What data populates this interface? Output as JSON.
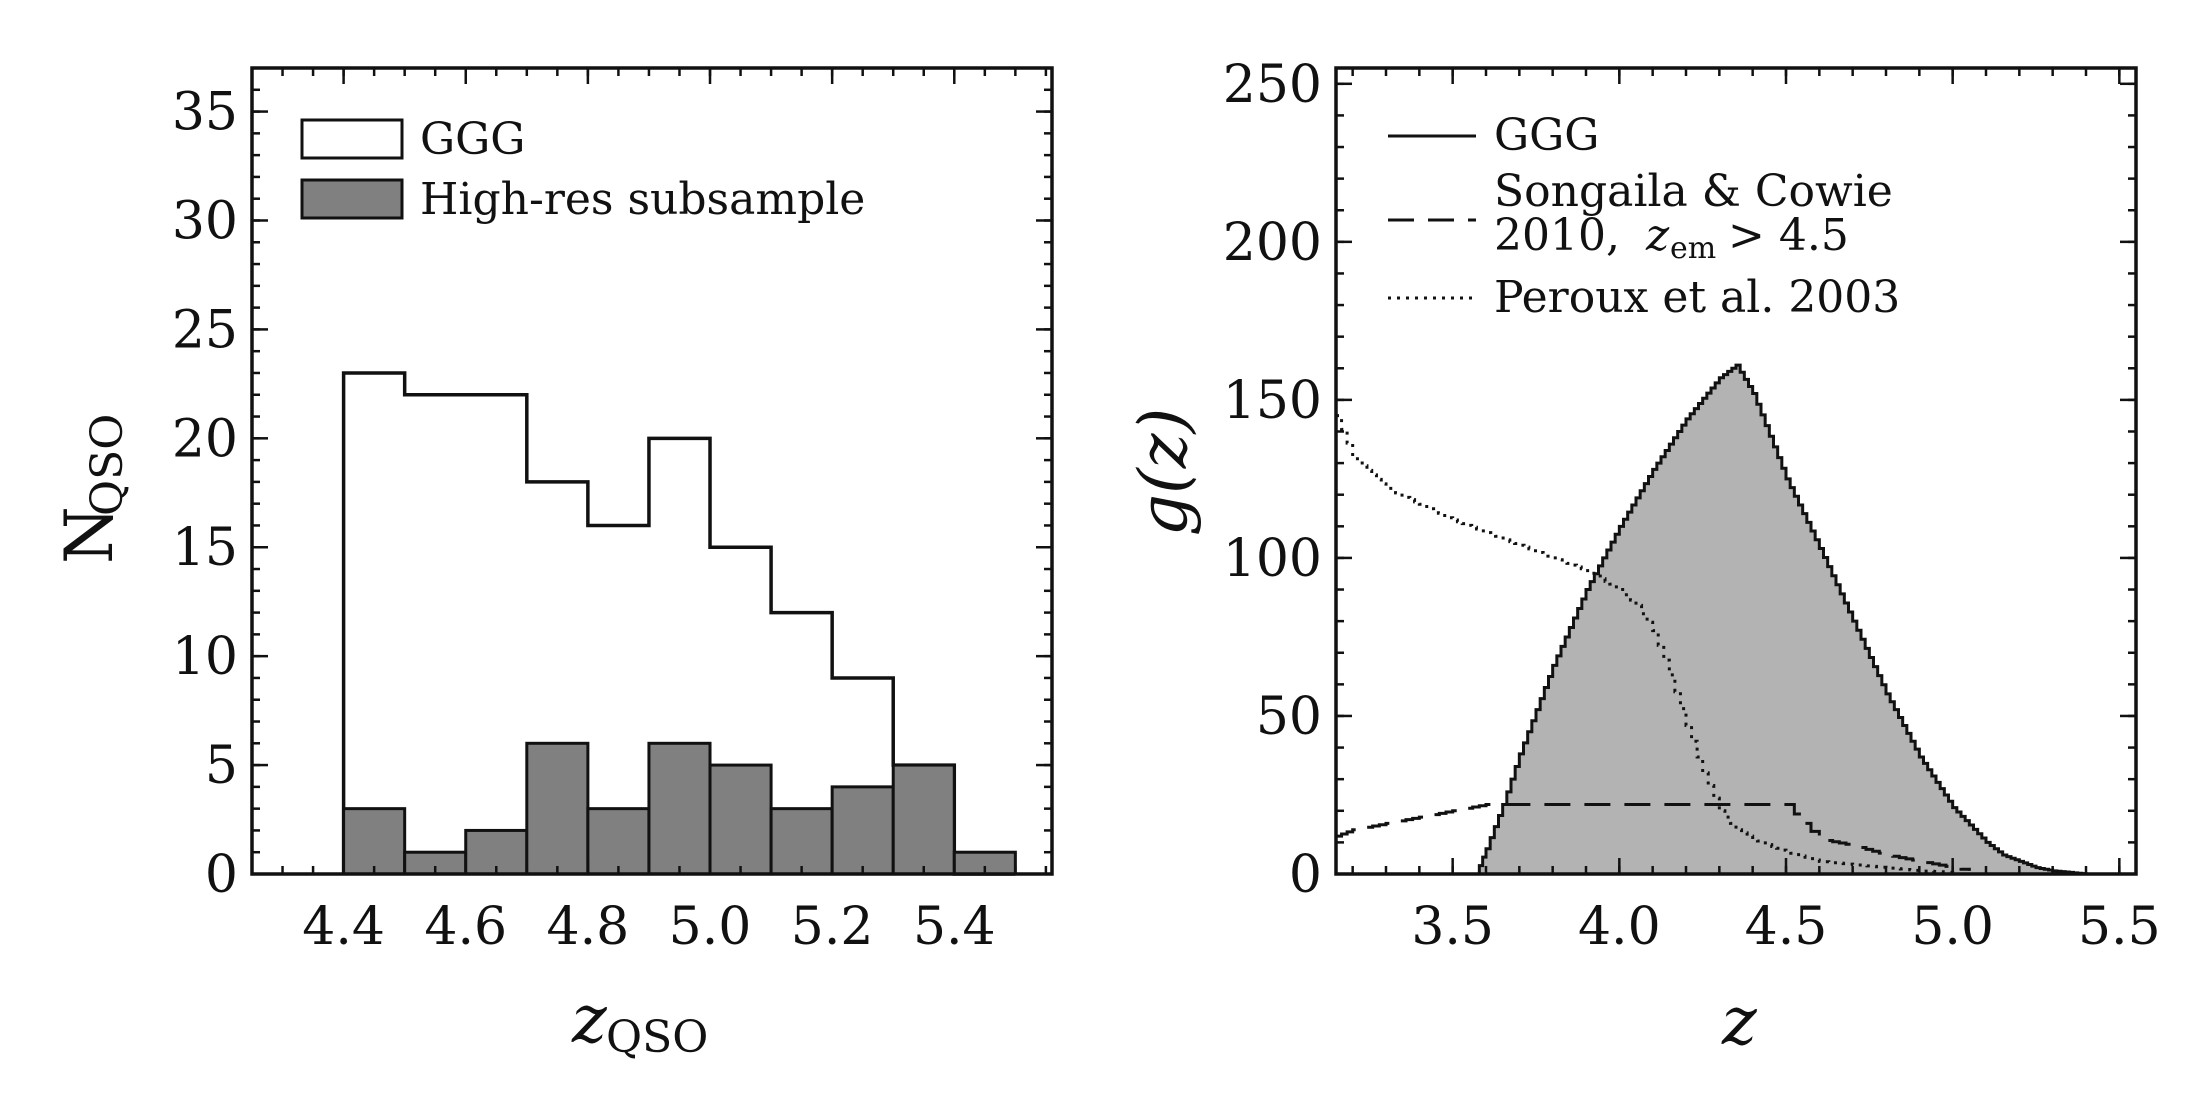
{
  "chart_data": [
    {
      "type": "histogram",
      "xlabel": "z",
      "xlabel_sub": "QSO",
      "ylabel": "N",
      "ylabel_sub": "QSO",
      "xlim": [
        4.25,
        5.56
      ],
      "ylim": [
        0,
        37
      ],
      "xticks": [
        "4.4",
        "4.6",
        "4.8",
        "5.0",
        "5.2",
        "5.4"
      ],
      "yticks": [
        "0",
        "5",
        "10",
        "15",
        "20",
        "25",
        "30",
        "35"
      ],
      "bin_edges": [
        4.4,
        4.5,
        4.6,
        4.7,
        4.8,
        4.9,
        5.0,
        5.1,
        5.2,
        5.3,
        5.4,
        5.5
      ],
      "series": [
        {
          "name": "GGG",
          "style": "step-outline",
          "fill": "#ffffff",
          "values": [
            23,
            22,
            22,
            18,
            16,
            20,
            15,
            12,
            9,
            5,
            0
          ]
        },
        {
          "name": "High-res subsample",
          "style": "step-filled",
          "fill": "#808080",
          "values": [
            3,
            1,
            2,
            6,
            3,
            6,
            5,
            3,
            4,
            5,
            1
          ]
        }
      ],
      "legend": {
        "position": "top-left",
        "entries": [
          "GGG",
          "High-res subsample"
        ]
      }
    },
    {
      "type": "line",
      "xlabel": "z",
      "ylabel": "g(z)",
      "xlim": [
        3.15,
        5.55
      ],
      "ylim": [
        0,
        255
      ],
      "xticks": [
        "3.5",
        "4.0",
        "4.5",
        "5.0",
        "5.5"
      ],
      "yticks": [
        "0",
        "50",
        "100",
        "150",
        "200",
        "250"
      ],
      "series": [
        {
          "name": "GGG",
          "style": "solid-filled",
          "fill": "#b3b3b3",
          "x": [
            3.57,
            3.6,
            3.65,
            3.7,
            3.8,
            3.9,
            4.0,
            4.1,
            4.2,
            4.3,
            4.35,
            4.4,
            4.5,
            4.6,
            4.7,
            4.8,
            4.9,
            5.0,
            5.1,
            5.15,
            5.2,
            5.25,
            5.3,
            5.35,
            5.4
          ],
          "y": [
            0,
            8,
            22,
            38,
            66,
            90,
            110,
            128,
            144,
            157,
            161,
            152,
            125,
            103,
            80,
            57,
            37,
            21,
            10,
            6,
            4,
            2,
            1,
            0.5,
            0
          ]
        },
        {
          "name": "Songaila & Cowie 2010, z_em > 4.5",
          "style": "dashed",
          "x": [
            3.15,
            3.2,
            3.3,
            3.4,
            3.5,
            3.6,
            3.7,
            4.0,
            4.3,
            4.5,
            4.55,
            4.6,
            4.7,
            4.8,
            4.9,
            5.0,
            5.05
          ],
          "y": [
            12,
            14,
            16,
            18,
            20,
            22,
            22,
            22,
            22,
            22,
            16,
            11,
            9,
            6,
            4,
            2,
            1
          ]
        },
        {
          "name": "Peroux et al. 2003",
          "style": "dotted",
          "x": [
            3.15,
            3.2,
            3.3,
            3.4,
            3.5,
            3.6,
            3.7,
            3.8,
            3.9,
            4.0,
            4.05,
            4.1,
            4.15,
            4.2,
            4.25,
            4.3,
            4.35,
            4.4,
            4.5,
            4.6,
            4.7,
            4.8,
            4.9,
            5.0
          ],
          "y": [
            145,
            132,
            122,
            117,
            112,
            108,
            104,
            100,
            96,
            90,
            85,
            77,
            63,
            47,
            32,
            20,
            14,
            11,
            7,
            4,
            3,
            2,
            1,
            0.5
          ]
        }
      ],
      "legend": {
        "position": "top-left",
        "entries": [
          "GGG",
          "Songaila & Cowie",
          "2010,",
          "Peroux et al. 2003"
        ],
        "songaila_condition": "> 4.5",
        "songaila_z": "z",
        "songaila_sub": "em"
      }
    }
  ]
}
